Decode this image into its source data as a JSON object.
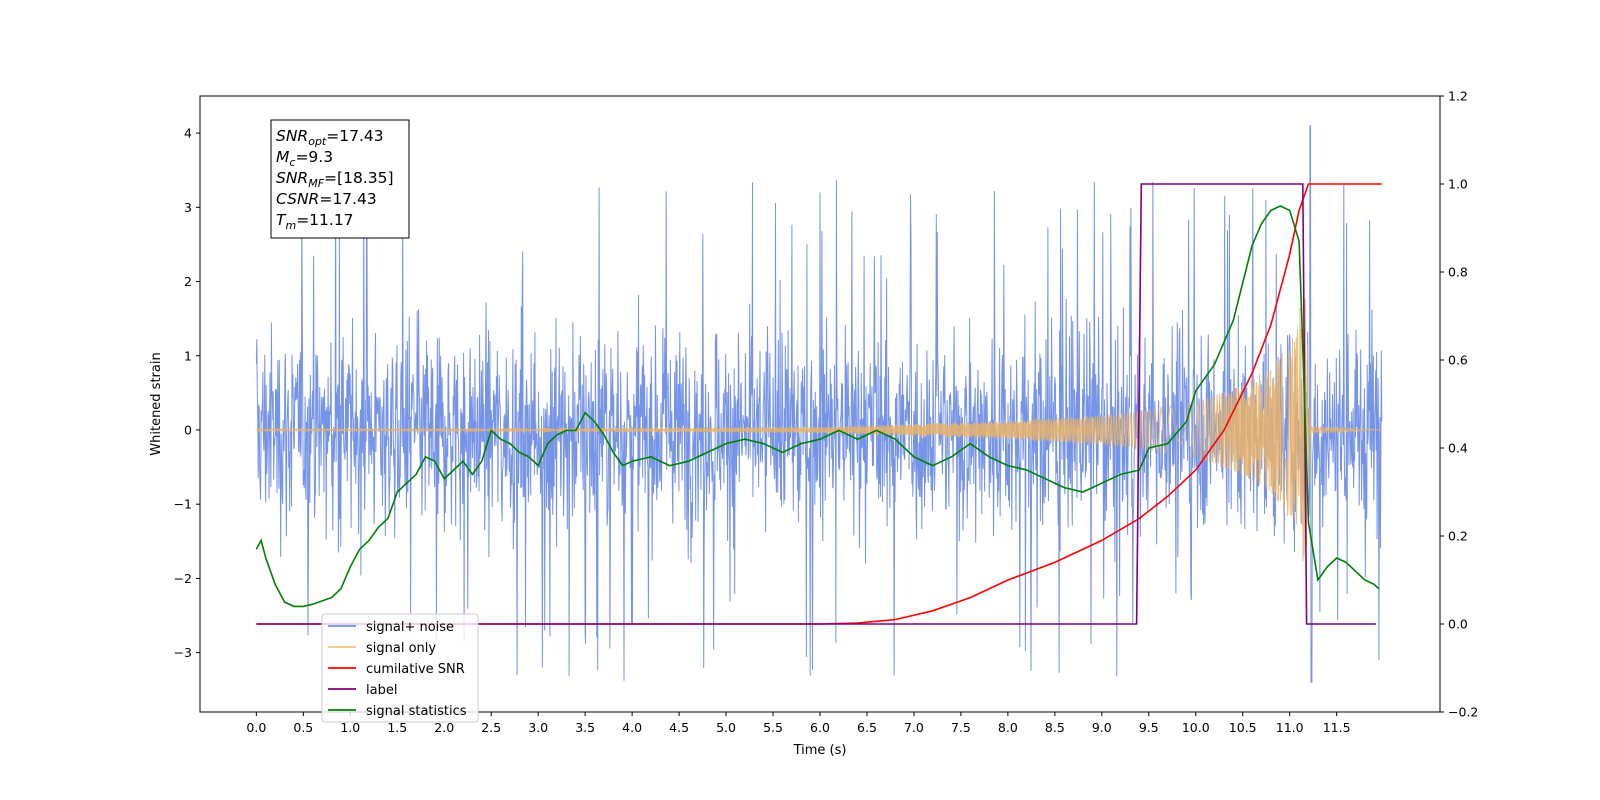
{
  "chart_data": {
    "type": "line",
    "xlabel": "Time (s)",
    "ylabel": "Whitened strain",
    "xlim": [
      -0.6,
      12.6
    ],
    "ylim": [
      -3.8,
      4.5
    ],
    "y2lim": [
      -0.2,
      1.2
    ],
    "x_ticks": [
      0.0,
      0.5,
      1.0,
      1.5,
      2.0,
      2.5,
      3.0,
      3.5,
      4.0,
      4.5,
      5.0,
      5.5,
      6.0,
      6.5,
      7.0,
      7.5,
      8.0,
      8.5,
      9.0,
      9.5,
      10.0,
      10.5,
      11.0,
      11.5
    ],
    "x_tick_labels": [
      "0.0",
      "0.5",
      "1.0",
      "1.5",
      "2.0",
      "2.5",
      "3.0",
      "3.5",
      "4.0",
      "4.5",
      "5.0",
      "5.5",
      "6.0",
      "6.5",
      "7.0",
      "7.5",
      "8.0",
      "8.5",
      "9.0",
      "9.5",
      "10.0",
      "10.5",
      "11.0",
      "11.5"
    ],
    "y_ticks": [
      -3,
      -2,
      -1,
      0,
      1,
      2,
      3,
      4
    ],
    "y_tick_labels": [
      "−3",
      "−2",
      "−1",
      "0",
      "1",
      "2",
      "3",
      "4"
    ],
    "y2_ticks": [
      -0.2,
      0.0,
      0.2,
      0.4,
      0.6,
      0.8,
      1.0,
      1.2
    ],
    "y2_tick_labels": [
      "−0.2",
      "0.0",
      "0.2",
      "0.4",
      "0.6",
      "0.8",
      "1.0",
      "1.2"
    ],
    "grid": false,
    "legend_position": "lower-left",
    "series": [
      {
        "name": "signal+ noise",
        "axis": "left",
        "color": "#6f8ee6",
        "kind": "noise",
        "x_range": [
          0.0,
          11.98
        ],
        "band": [
          -1.6,
          1.6
        ],
        "spike_max": 3.4,
        "spike_min": -3.4,
        "peak": [
          11.22,
          4.1
        ]
      },
      {
        "name": "signal only",
        "axis": "left",
        "color": "#e8b36b",
        "kind": "chirp",
        "x_range": [
          0.0,
          11.98
        ],
        "merger_time": 11.17,
        "envelope": [
          [
            0.0,
            0.01
          ],
          [
            6.0,
            0.04
          ],
          [
            7.0,
            0.08
          ],
          [
            8.0,
            0.12
          ],
          [
            9.0,
            0.2
          ],
          [
            9.5,
            0.27
          ],
          [
            10.0,
            0.38
          ],
          [
            10.5,
            0.6
          ],
          [
            10.8,
            0.85
          ],
          [
            11.0,
            1.2
          ],
          [
            11.1,
            1.6
          ],
          [
            11.17,
            1.9
          ],
          [
            11.22,
            0.05
          ],
          [
            11.98,
            0.0
          ]
        ]
      },
      {
        "name": "cumilative SNR",
        "axis": "right",
        "color": "#ff0000",
        "x": [
          0.0,
          6.0,
          6.4,
          6.8,
          7.2,
          7.6,
          8.0,
          8.5,
          9.0,
          9.4,
          9.7,
          10.0,
          10.3,
          10.6,
          10.8,
          11.0,
          11.1,
          11.2,
          11.98
        ],
        "y": [
          0.0,
          0.0,
          0.002,
          0.01,
          0.03,
          0.06,
          0.1,
          0.14,
          0.19,
          0.24,
          0.29,
          0.35,
          0.44,
          0.57,
          0.68,
          0.84,
          0.94,
          1.0,
          1.0
        ]
      },
      {
        "name": "label",
        "axis": "right",
        "color": "#800080",
        "x": [
          0.0,
          9.37,
          9.42,
          11.14,
          11.18,
          11.92
        ],
        "y": [
          0.0,
          0.0,
          1.0,
          1.0,
          0.0,
          0.0
        ]
      },
      {
        "name": "signal statistics",
        "axis": "right",
        "color": "#008000",
        "x": [
          0.0,
          0.05,
          0.1,
          0.2,
          0.3,
          0.4,
          0.5,
          0.6,
          0.8,
          0.9,
          1.0,
          1.1,
          1.2,
          1.3,
          1.4,
          1.5,
          1.6,
          1.7,
          1.8,
          1.9,
          2.0,
          2.1,
          2.2,
          2.3,
          2.4,
          2.5,
          2.6,
          2.7,
          2.8,
          2.9,
          3.0,
          3.1,
          3.2,
          3.3,
          3.4,
          3.5,
          3.6,
          3.7,
          3.8,
          3.9,
          4.0,
          4.2,
          4.4,
          4.6,
          4.8,
          5.0,
          5.2,
          5.4,
          5.6,
          5.8,
          6.0,
          6.2,
          6.4,
          6.6,
          6.8,
          7.0,
          7.2,
          7.4,
          7.6,
          7.8,
          8.0,
          8.2,
          8.4,
          8.6,
          8.8,
          9.0,
          9.2,
          9.4,
          9.5,
          9.7,
          9.9,
          10.0,
          10.2,
          10.4,
          10.6,
          10.7,
          10.8,
          10.9,
          11.0,
          11.1,
          11.15,
          11.2,
          11.3,
          11.4,
          11.5,
          11.6,
          11.7,
          11.8,
          11.9,
          11.95
        ],
        "y": [
          0.17,
          0.19,
          0.15,
          0.09,
          0.05,
          0.04,
          0.04,
          0.045,
          0.06,
          0.08,
          0.13,
          0.17,
          0.19,
          0.22,
          0.24,
          0.3,
          0.32,
          0.34,
          0.38,
          0.37,
          0.33,
          0.35,
          0.37,
          0.34,
          0.37,
          0.44,
          0.42,
          0.41,
          0.39,
          0.38,
          0.36,
          0.41,
          0.43,
          0.44,
          0.44,
          0.48,
          0.46,
          0.43,
          0.39,
          0.36,
          0.37,
          0.38,
          0.36,
          0.37,
          0.39,
          0.41,
          0.42,
          0.41,
          0.39,
          0.41,
          0.42,
          0.44,
          0.42,
          0.44,
          0.42,
          0.38,
          0.36,
          0.38,
          0.41,
          0.38,
          0.36,
          0.35,
          0.33,
          0.31,
          0.3,
          0.32,
          0.34,
          0.35,
          0.4,
          0.41,
          0.46,
          0.53,
          0.59,
          0.69,
          0.86,
          0.91,
          0.94,
          0.95,
          0.94,
          0.87,
          0.56,
          0.23,
          0.1,
          0.13,
          0.15,
          0.14,
          0.12,
          0.1,
          0.09,
          0.08
        ]
      }
    ],
    "annotation_lines": [
      {
        "sym": "SNR",
        "sub": "opt",
        "value": "=17.43"
      },
      {
        "sym": "M",
        "sub": "c",
        "value": "=9.3"
      },
      {
        "sym": "SNR",
        "sub": "MF",
        "value": "=[18.35]"
      },
      {
        "sym": "CSNR",
        "sub": "",
        "value": "=17.43"
      },
      {
        "sym": "T",
        "sub": "m",
        "value": "=11.17"
      }
    ],
    "legend": [
      {
        "label": "signal+ noise",
        "color": "#6f8ee6"
      },
      {
        "label": "signal only",
        "color": "#f5c27a"
      },
      {
        "label": "cumilative SNR",
        "color": "#ff0000"
      },
      {
        "label": "label",
        "color": "#800080"
      },
      {
        "label": "signal statistics",
        "color": "#008000"
      }
    ]
  }
}
